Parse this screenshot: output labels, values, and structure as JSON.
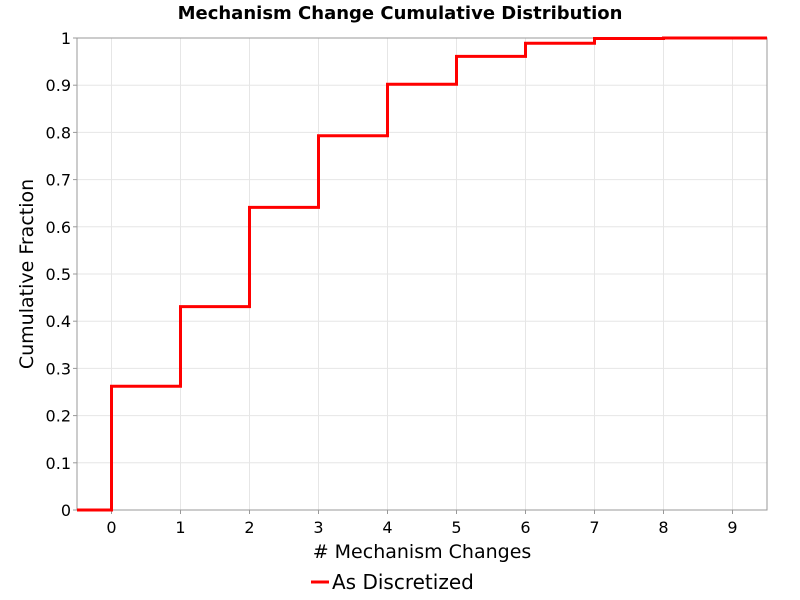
{
  "chart_data": {
    "type": "line",
    "title": "Mechanism Change Cumulative Distribution",
    "xlabel": "# Mechanism Changes",
    "ylabel": "Cumulative Fraction",
    "xlim": [
      -0.5,
      9.5
    ],
    "ylim": [
      0,
      1
    ],
    "x_ticks": [
      "0",
      "1",
      "2",
      "3",
      "4",
      "5",
      "6",
      "7",
      "8",
      "9"
    ],
    "y_ticks": [
      "0",
      "0.1",
      "0.2",
      "0.3",
      "0.4",
      "0.5",
      "0.6",
      "0.7",
      "0.8",
      "0.9",
      "1"
    ],
    "grid": true,
    "step": true,
    "legend_position": "bottom",
    "series": [
      {
        "name": "As Discretized",
        "color": "#ff0000",
        "x": [
          -0.5,
          0,
          1,
          2,
          3,
          4,
          5,
          6,
          7,
          8,
          9.5
        ],
        "y": [
          0,
          0.262,
          0.431,
          0.641,
          0.793,
          0.902,
          0.961,
          0.989,
          0.999,
          1.0,
          1.0
        ]
      }
    ]
  }
}
